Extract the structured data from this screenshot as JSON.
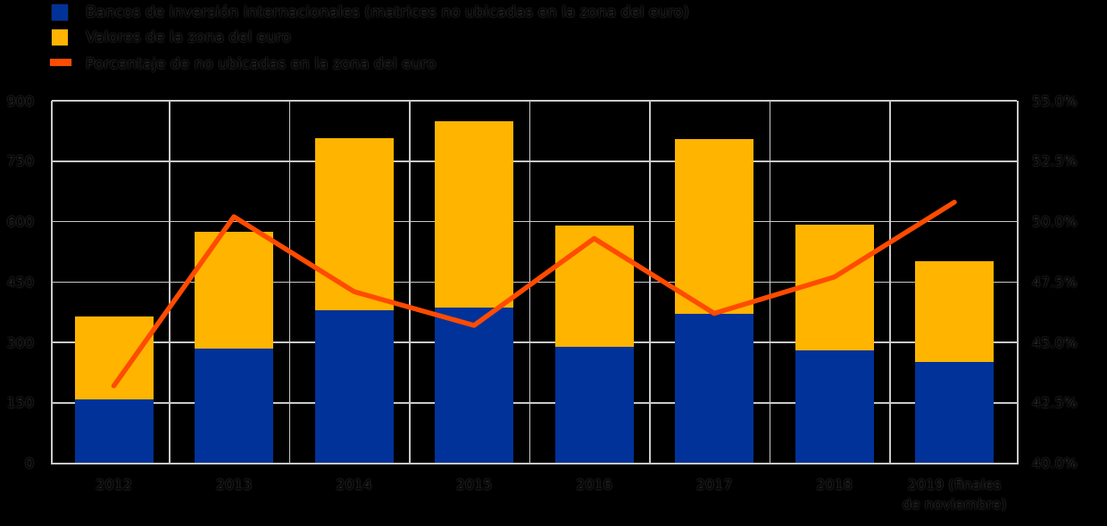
{
  "legend": {
    "items": [
      {
        "label": "Bancos de inversión internacionales (matrices no ubicadas en la zona del euro)",
        "swatch": "square",
        "color": "#003299"
      },
      {
        "label": "Valores de la zona del euro",
        "swatch": "square",
        "color": "#FFB400"
      },
      {
        "label": "Porcentaje de no ubicadas en la zona del euro",
        "swatch": "line",
        "color": "#FF4B00"
      }
    ]
  },
  "chart_data": {
    "type": "bar",
    "subtype": "stacked-bars-with-line",
    "categories": [
      "2012",
      "2013",
      "2014",
      "2015",
      "2016",
      "2017",
      "2018",
      "2019 (finales de noviembre)"
    ],
    "series": [
      {
        "name": "Bancos de inversión internacionales (matrices no ubicadas en la zona del euro)",
        "type": "bar",
        "stack": "total",
        "axis": "left",
        "color": "#003299",
        "values": [
          158,
          285,
          379,
          386,
          289,
          370,
          280,
          252
        ]
      },
      {
        "name": "Valores de la zona del euro",
        "type": "bar",
        "stack": "total",
        "axis": "left",
        "color": "#FFB400",
        "values": [
          207,
          289,
          427,
          462,
          301,
          435,
          312,
          249
        ]
      },
      {
        "name": "Porcentaje de no ubicadas en la zona del euro",
        "type": "line",
        "axis": "right",
        "color": "#FF4B00",
        "values": [
          43.2,
          50.2,
          47.1,
          45.7,
          49.3,
          46.2,
          47.7,
          50.8
        ]
      }
    ],
    "stack_totals": [
      365,
      574,
      806,
      848,
      590,
      805,
      592,
      501
    ],
    "left_axis": {
      "min": 0,
      "max": 900,
      "step": 150,
      "ticks": [
        "900",
        "750",
        "600",
        "450",
        "300",
        "150",
        "0"
      ]
    },
    "right_axis": {
      "min": 40,
      "max": 55,
      "step": 2.5,
      "ticks": [
        "55.0%",
        "52.5%",
        "50.0%",
        "47.5%",
        "45.0%",
        "42.5%",
        "40.0%"
      ]
    },
    "title": "",
    "xlabel": "",
    "ylabel": "",
    "grid": true,
    "legend_position": "top-left"
  },
  "colors": {
    "background": "#000000",
    "grid": "#C9C9C9",
    "text": "#000000",
    "bar_blue": "#003299",
    "bar_yellow": "#FFB400",
    "line_orange": "#FF4B00"
  }
}
